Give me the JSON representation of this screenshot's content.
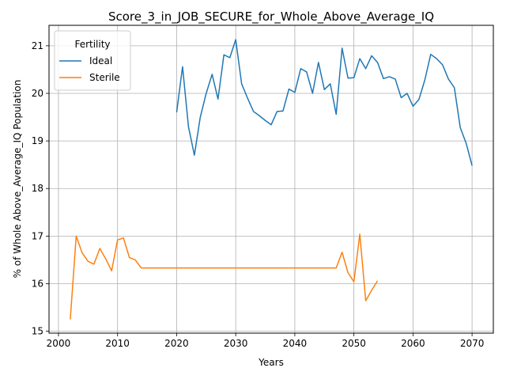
{
  "chart_data": {
    "type": "line",
    "title": "Score_3_in_JOB_SECURE_for_Whole_Above_Average_IQ",
    "xlabel": "Years",
    "ylabel": "% of Whole Above_Average_IQ Population",
    "xlim": [
      1998.4,
      2073.6
    ],
    "ylim": [
      14.96,
      21.43
    ],
    "xticks": [
      2000,
      2010,
      2020,
      2030,
      2040,
      2050,
      2060,
      2070
    ],
    "yticks": [
      15,
      16,
      17,
      18,
      19,
      20,
      21
    ],
    "grid": true,
    "legend": {
      "title": "Fertility",
      "placement": "top-left"
    },
    "series": [
      {
        "name": "Ideal",
        "color": "#1f77b4",
        "x": [
          2020,
          2021,
          2022,
          2023,
          2024,
          2025,
          2026,
          2027,
          2028,
          2029,
          2030,
          2031,
          2032,
          2033,
          2034,
          2035,
          2036,
          2037,
          2038,
          2039,
          2040,
          2041,
          2042,
          2043,
          2044,
          2045,
          2046,
          2047,
          2048,
          2049,
          2050,
          2051,
          2052,
          2053,
          2054,
          2055,
          2056,
          2057,
          2058,
          2059,
          2060,
          2061,
          2062,
          2063,
          2064,
          2065,
          2066,
          2067,
          2068,
          2069,
          2070
        ],
        "y": [
          19.6,
          20.56,
          19.3,
          18.7,
          19.5,
          20.0,
          20.4,
          19.88,
          20.81,
          20.75,
          21.13,
          20.2,
          19.9,
          19.62,
          19.53,
          19.43,
          19.34,
          19.62,
          19.63,
          20.09,
          20.02,
          20.52,
          20.45,
          20.0,
          20.65,
          20.08,
          20.2,
          19.56,
          20.95,
          20.32,
          20.33,
          20.73,
          20.52,
          20.79,
          20.65,
          20.31,
          20.35,
          20.3,
          19.91,
          20.0,
          19.73,
          19.87,
          20.28,
          20.82,
          20.73,
          20.6,
          20.3,
          20.12,
          19.28,
          18.95,
          18.48
        ]
      },
      {
        "name": "Sterile",
        "color": "#ff7f0e",
        "x": [
          2002,
          2003,
          2004,
          2005,
          2006,
          2007,
          2008,
          2009,
          2010,
          2011,
          2012,
          2013,
          2014,
          2015,
          2016,
          2017,
          2018,
          2019,
          2020,
          2021,
          2022,
          2023,
          2024,
          2025,
          2026,
          2027,
          2028,
          2029,
          2030,
          2031,
          2032,
          2033,
          2034,
          2035,
          2036,
          2037,
          2038,
          2039,
          2040,
          2041,
          2042,
          2043,
          2044,
          2045,
          2046,
          2047,
          2048,
          2049,
          2050,
          2051,
          2052,
          2053,
          2054
        ],
        "y": [
          15.25,
          17.0,
          16.65,
          16.47,
          16.41,
          16.74,
          16.52,
          16.27,
          16.92,
          16.96,
          16.55,
          16.5,
          16.33,
          16.33,
          16.33,
          16.33,
          16.33,
          16.33,
          16.33,
          16.33,
          16.33,
          16.33,
          16.33,
          16.33,
          16.33,
          16.33,
          16.33,
          16.33,
          16.33,
          16.33,
          16.33,
          16.33,
          16.33,
          16.33,
          16.33,
          16.33,
          16.33,
          16.33,
          16.33,
          16.33,
          16.33,
          16.33,
          16.33,
          16.33,
          16.33,
          16.33,
          16.66,
          16.23,
          16.04,
          17.04,
          15.64,
          15.86,
          16.06
        ]
      }
    ]
  }
}
